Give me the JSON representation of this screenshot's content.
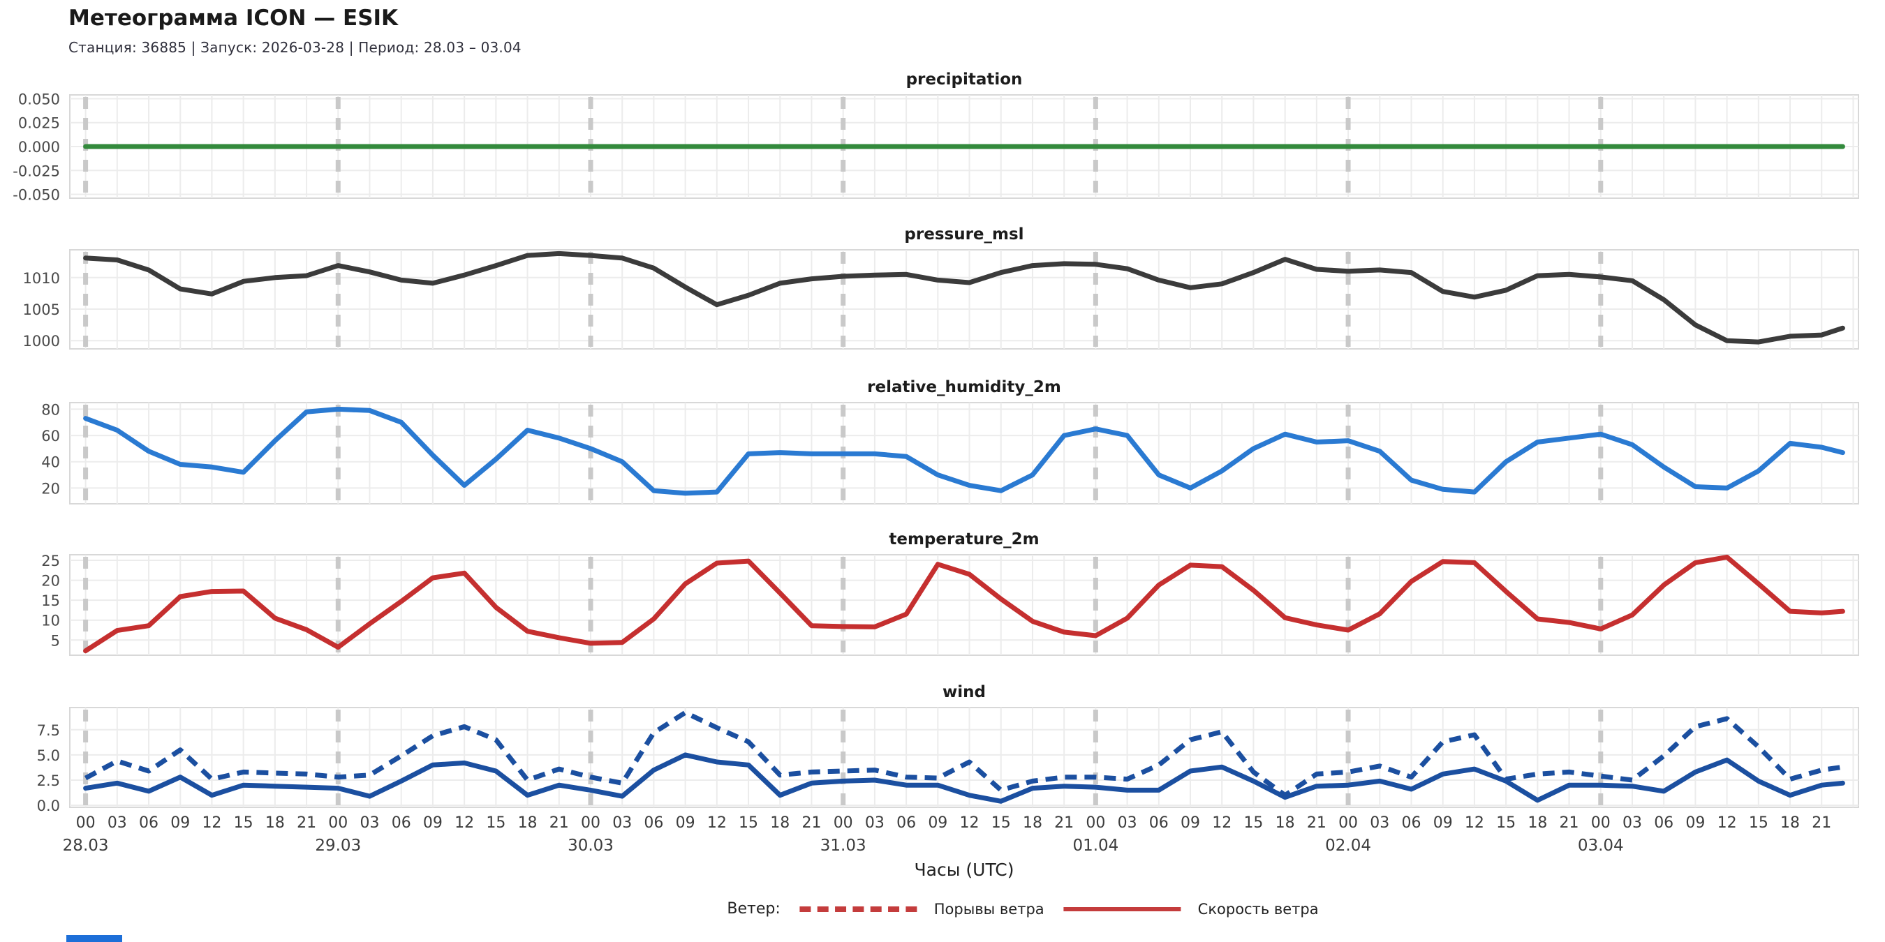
{
  "header": {
    "title": "Метеограмма ICON — ESIK",
    "subtitle": "Станция: 36885  | Запуск: 2026-03-28  | Период: 28.03 – 03.04"
  },
  "xaxis": {
    "label": "Часы (UTC)",
    "days": [
      "28.03",
      "29.03",
      "30.03",
      "31.03",
      "01.04",
      "02.04",
      "03.04"
    ],
    "hour_ticks": [
      "00",
      "03",
      "06",
      "09",
      "12",
      "15",
      "18",
      "21"
    ]
  },
  "legend": {
    "prefix": "Ветер:",
    "color": "#c43c3c",
    "items": [
      {
        "label": "Порывы ветра",
        "style": "dashed"
      },
      {
        "label": "Скорость ветра",
        "style": "solid"
      }
    ]
  },
  "colors": {
    "grid": "#ececec",
    "day_marker": "#c9c9c9",
    "panel_border": "#d8d8d8",
    "tick_text": "#4a4a4a",
    "precipitation": "#338a3c",
    "pressure": "#3b3b3b",
    "humidity": "#2a7ad2",
    "temperature": "#c52f2f",
    "wind": "#1b4fa0"
  },
  "chart_data": [
    {
      "type": "line",
      "title": "precipitation",
      "ylim": [
        -0.054,
        0.054
      ],
      "yticks": [
        0.05,
        0.025,
        0,
        -0.025,
        -0.05
      ],
      "ytick_labels": [
        "0.050",
        "0.025",
        "0.000",
        "-0.025",
        "-0.050"
      ],
      "series": [
        {
          "name": "precipitation",
          "color": "#338a3c",
          "dash": false,
          "values": [
            0,
            0,
            0,
            0,
            0,
            0,
            0,
            0,
            0,
            0,
            0,
            0,
            0,
            0,
            0,
            0,
            0,
            0,
            0,
            0,
            0,
            0,
            0,
            0,
            0,
            0,
            0,
            0,
            0,
            0,
            0,
            0,
            0,
            0,
            0,
            0,
            0,
            0,
            0,
            0,
            0,
            0,
            0,
            0,
            0,
            0,
            0,
            0,
            0,
            0,
            0,
            0,
            0,
            0,
            0,
            0,
            0
          ]
        }
      ]
    },
    {
      "type": "line",
      "title": "pressure_msl",
      "ylim": [
        998.7,
        1014.4
      ],
      "yticks": [
        1010,
        1005,
        1000
      ],
      "ytick_labels": [
        "1010",
        "1005",
        "1000"
      ],
      "series": [
        {
          "name": "pressure_msl",
          "color": "#3b3b3b",
          "dash": false,
          "values": [
            1013.1,
            1012.8,
            1011.2,
            1008.2,
            1007.4,
            1009.4,
            1010.0,
            1010.3,
            1011.9,
            1010.9,
            1009.6,
            1009.1,
            1010.4,
            1011.9,
            1013.5,
            1013.8,
            1013.5,
            1013.1,
            1011.5,
            1008.5,
            1005.7,
            1007.2,
            1009.1,
            1009.8,
            1010.2,
            1010.4,
            1010.5,
            1009.6,
            1009.2,
            1010.8,
            1011.9,
            1012.2,
            1012.1,
            1011.4,
            1009.6,
            1008.4,
            1009.0,
            1010.8,
            1012.9,
            1011.3,
            1011.0,
            1011.2,
            1010.8,
            1007.8,
            1006.9,
            1008.0,
            1010.3,
            1010.5,
            1010.1,
            1009.5,
            1006.5,
            1002.5,
            1000.0,
            999.8,
            1000.7,
            1000.9,
            1002.0
          ]
        }
      ]
    },
    {
      "type": "line",
      "title": "relative_humidity_2m",
      "ylim": [
        8,
        85
      ],
      "yticks": [
        80,
        60,
        40,
        20
      ],
      "ytick_labels": [
        "80",
        "60",
        "40",
        "20"
      ],
      "series": [
        {
          "name": "relative_humidity_2m",
          "color": "#2a7ad2",
          "dash": false,
          "values": [
            73,
            64,
            48,
            38,
            36,
            32,
            56,
            78,
            80,
            79,
            70,
            45,
            22,
            42,
            64,
            58,
            50,
            40,
            18,
            16,
            17,
            46,
            47,
            46,
            46,
            46,
            44,
            30,
            22,
            18,
            30,
            60,
            65,
            60,
            30,
            20,
            33,
            50,
            61,
            55,
            56,
            48,
            26,
            19,
            17,
            40,
            55,
            58,
            61,
            53,
            36,
            21,
            20,
            33,
            54,
            51,
            47
          ]
        }
      ]
    },
    {
      "type": "line",
      "title": "temperature_2m",
      "ylim": [
        1.2,
        26.4
      ],
      "yticks": [
        25,
        20,
        15,
        10,
        5
      ],
      "ytick_labels": [
        "25",
        "20",
        "15",
        "10",
        "5"
      ],
      "series": [
        {
          "name": "temperature_2m",
          "color": "#c52f2f",
          "dash": false,
          "values": [
            2.3,
            7.4,
            8.6,
            15.9,
            17.2,
            17.3,
            10.5,
            7.6,
            3.2,
            9.1,
            14.7,
            20.6,
            21.8,
            13.2,
            7.2,
            5.6,
            4.2,
            4.4,
            10.3,
            19.1,
            24.3,
            24.8,
            16.8,
            8.6,
            8.4,
            8.3,
            11.5,
            24.0,
            21.5,
            15.3,
            9.7,
            7.0,
            6.1,
            10.5,
            18.8,
            23.8,
            23.4,
            17.5,
            10.6,
            8.8,
            7.5,
            11.6,
            19.7,
            24.7,
            24.4,
            17.2,
            10.3,
            9.4,
            7.8,
            11.3,
            18.8,
            24.4,
            25.8,
            19.1,
            12.2,
            11.8,
            12.2
          ]
        }
      ]
    },
    {
      "type": "line",
      "title": "wind",
      "ylim": [
        -0.2,
        9.7
      ],
      "yticks": [
        7.5,
        5.0,
        2.5,
        0.0
      ],
      "ytick_labels": [
        "7.5",
        "5.0",
        "2.5",
        "0.0"
      ],
      "series": [
        {
          "name": "Порывы ветра",
          "color": "#1b4fa0",
          "dash": true,
          "values": [
            2.7,
            4.4,
            3.4,
            5.5,
            2.6,
            3.3,
            3.2,
            3.1,
            2.8,
            3.0,
            4.9,
            6.9,
            7.8,
            6.5,
            2.5,
            3.6,
            2.8,
            2.2,
            7.2,
            9.2,
            7.7,
            6.3,
            3.0,
            3.3,
            3.4,
            3.5,
            2.8,
            2.7,
            4.3,
            1.5,
            2.4,
            2.8,
            2.8,
            2.6,
            4.0,
            6.5,
            7.3,
            3.3,
            1.0,
            3.1,
            3.3,
            3.9,
            2.8,
            6.3,
            7.0,
            2.6,
            3.1,
            3.3,
            2.9,
            2.5,
            4.9,
            7.8,
            8.6,
            5.8,
            2.6,
            3.5,
            3.8
          ]
        },
        {
          "name": "Скорость ветра",
          "color": "#1b4fa0",
          "dash": false,
          "values": [
            1.7,
            2.2,
            1.4,
            2.8,
            1.0,
            2.0,
            1.9,
            1.8,
            1.7,
            0.9,
            2.4,
            4.0,
            4.2,
            3.4,
            1.0,
            2.0,
            1.5,
            0.9,
            3.5,
            5.0,
            4.3,
            4.0,
            1.0,
            2.2,
            2.4,
            2.5,
            2.0,
            2.0,
            1.0,
            0.4,
            1.7,
            1.9,
            1.8,
            1.5,
            1.5,
            3.4,
            3.8,
            2.4,
            0.8,
            1.9,
            2.0,
            2.4,
            1.6,
            3.1,
            3.6,
            2.4,
            0.5,
            2.0,
            2.0,
            1.9,
            1.4,
            3.3,
            4.5,
            2.4,
            1.0,
            2.0,
            2.2
          ]
        }
      ]
    }
  ],
  "x_hours": [
    0,
    3,
    6,
    9,
    12,
    15,
    18,
    21,
    24,
    27,
    30,
    33,
    36,
    39,
    42,
    45,
    48,
    51,
    54,
    57,
    60,
    63,
    66,
    69,
    72,
    75,
    78,
    81,
    84,
    87,
    90,
    93,
    96,
    99,
    102,
    105,
    108,
    111,
    114,
    117,
    120,
    123,
    126,
    129,
    132,
    135,
    138,
    141,
    144,
    147,
    150,
    153,
    156,
    159,
    162,
    165,
    167
  ]
}
